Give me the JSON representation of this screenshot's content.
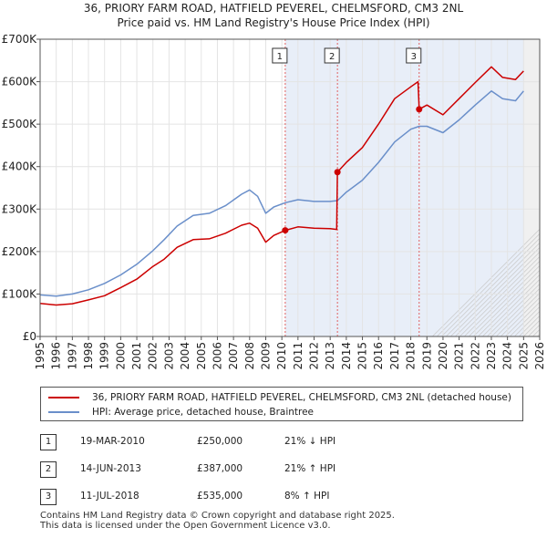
{
  "chart_data": {
    "type": "line",
    "title": "36, PRIORY FARM ROAD, HATFIELD PEVEREL, CHELMSFORD, CM3 2NL",
    "subtitle": "Price paid vs. HM Land Registry's House Price Index (HPI)",
    "xlim": [
      1995,
      2026
    ],
    "ylim": [
      0,
      700000
    ],
    "x_ticks": [
      "1995",
      "1996",
      "1997",
      "1998",
      "1999",
      "2000",
      "2001",
      "2002",
      "2003",
      "2004",
      "2005",
      "2006",
      "2007",
      "2008",
      "2009",
      "2010",
      "2011",
      "2012",
      "2013",
      "2014",
      "2015",
      "2016",
      "2017",
      "2018",
      "2019",
      "2020",
      "2021",
      "2022",
      "2023",
      "2024",
      "2025",
      "2026"
    ],
    "y_ticks": [
      {
        "value": 0,
        "label": "£0"
      },
      {
        "value": 100000,
        "label": "£100K"
      },
      {
        "value": 200000,
        "label": "£200K"
      },
      {
        "value": 300000,
        "label": "£300K"
      },
      {
        "value": 400000,
        "label": "£400K"
      },
      {
        "value": 500000,
        "label": "£500K"
      },
      {
        "value": 600000,
        "label": "£600K"
      },
      {
        "value": 700000,
        "label": "£700K"
      }
    ],
    "forecast_start": 2025.0,
    "series": [
      {
        "name": "36, PRIORY FARM ROAD, HATFIELD PEVEREL, CHELMSFORD, CM3 2NL (detached house)",
        "color": "#cc0000",
        "points": [
          [
            1995.0,
            78000
          ],
          [
            1996.0,
            74000
          ],
          [
            1997.0,
            77000
          ],
          [
            1998.0,
            86000
          ],
          [
            1999.0,
            96000
          ],
          [
            2000.0,
            115000
          ],
          [
            2001.0,
            135000
          ],
          [
            2002.0,
            165000
          ],
          [
            2002.7,
            182000
          ],
          [
            2003.5,
            210000
          ],
          [
            2004.5,
            228000
          ],
          [
            2005.5,
            230000
          ],
          [
            2006.5,
            243000
          ],
          [
            2007.5,
            262000
          ],
          [
            2008.0,
            267000
          ],
          [
            2008.5,
            255000
          ],
          [
            2009.0,
            222000
          ],
          [
            2009.5,
            238000
          ],
          [
            2010.21,
            250000
          ],
          [
            2011.0,
            258000
          ],
          [
            2012.0,
            255000
          ],
          [
            2013.0,
            254000
          ],
          [
            2013.4,
            252000
          ],
          [
            2013.45,
            387000
          ],
          [
            2014.0,
            410000
          ],
          [
            2015.0,
            445000
          ],
          [
            2016.0,
            500000
          ],
          [
            2017.0,
            560000
          ],
          [
            2018.0,
            588000
          ],
          [
            2018.45,
            600000
          ],
          [
            2018.52,
            535000
          ],
          [
            2019.0,
            545000
          ],
          [
            2020.0,
            522000
          ],
          [
            2021.0,
            560000
          ],
          [
            2022.0,
            598000
          ],
          [
            2023.0,
            635000
          ],
          [
            2023.7,
            610000
          ],
          [
            2024.5,
            605000
          ],
          [
            2025.0,
            625000
          ]
        ]
      },
      {
        "name": "HPI: Average price, detached house, Braintree",
        "color": "#6a8fca",
        "points": [
          [
            1995.0,
            98000
          ],
          [
            1996.0,
            95000
          ],
          [
            1997.0,
            100000
          ],
          [
            1998.0,
            110000
          ],
          [
            1999.0,
            125000
          ],
          [
            2000.0,
            145000
          ],
          [
            2001.0,
            170000
          ],
          [
            2002.0,
            202000
          ],
          [
            2002.7,
            228000
          ],
          [
            2003.5,
            260000
          ],
          [
            2004.5,
            285000
          ],
          [
            2005.5,
            290000
          ],
          [
            2006.5,
            308000
          ],
          [
            2007.5,
            335000
          ],
          [
            2008.0,
            345000
          ],
          [
            2008.5,
            330000
          ],
          [
            2009.0,
            290000
          ],
          [
            2009.5,
            305000
          ],
          [
            2010.21,
            315000
          ],
          [
            2011.0,
            322000
          ],
          [
            2012.0,
            318000
          ],
          [
            2013.0,
            318000
          ],
          [
            2013.45,
            320000
          ],
          [
            2014.0,
            340000
          ],
          [
            2015.0,
            368000
          ],
          [
            2016.0,
            410000
          ],
          [
            2017.0,
            458000
          ],
          [
            2018.0,
            488000
          ],
          [
            2018.52,
            495000
          ],
          [
            2019.0,
            495000
          ],
          [
            2020.0,
            480000
          ],
          [
            2021.0,
            510000
          ],
          [
            2022.0,
            545000
          ],
          [
            2023.0,
            578000
          ],
          [
            2023.7,
            560000
          ],
          [
            2024.5,
            555000
          ],
          [
            2025.0,
            578000
          ]
        ]
      }
    ],
    "transactions": [
      {
        "label": "1",
        "x": 2010.21,
        "y": 250000
      },
      {
        "label": "2",
        "x": 2013.45,
        "y": 387000
      },
      {
        "label": "3",
        "x": 2018.52,
        "y": 535000
      }
    ]
  },
  "legend": {
    "red_label": "36, PRIORY FARM ROAD, HATFIELD PEVEREL, CHELMSFORD, CM3 2NL (detached house)",
    "blue_label": "HPI: Average price, detached house, Braintree"
  },
  "sales": [
    {
      "num": "1",
      "date": "19-MAR-2010",
      "price": "£250,000",
      "hpi": "21% ↓ HPI"
    },
    {
      "num": "2",
      "date": "14-JUN-2013",
      "price": "£387,000",
      "hpi": "21% ↑ HPI"
    },
    {
      "num": "3",
      "date": "11-JUL-2018",
      "price": "£535,000",
      "hpi": "8% ↑ HPI"
    }
  ],
  "footer": {
    "line1": "Contains HM Land Registry data © Crown copyright and database right 2025.",
    "line2": "This data is licensed under the Open Government Licence v3.0."
  },
  "colors": {
    "red": "#cc0000",
    "blue": "#6a8fca",
    "shade": "#e8eef8"
  }
}
